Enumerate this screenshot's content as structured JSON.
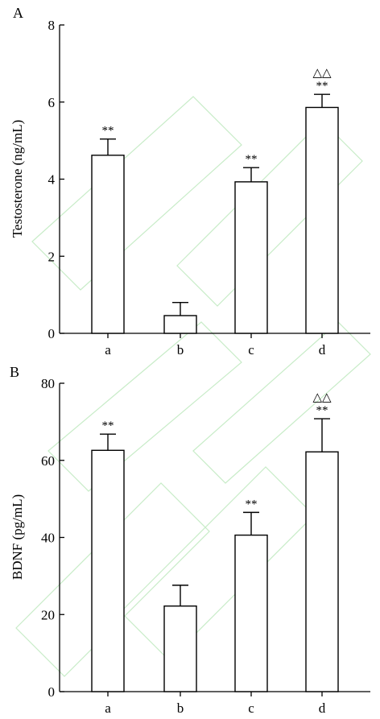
{
  "chart_data": [
    {
      "panel": "A",
      "type": "bar",
      "ylabel": "Testosterone (ng/mL)",
      "categories": [
        "a",
        "b",
        "c",
        "d"
      ],
      "values": [
        4.62,
        0.46,
        3.93,
        5.86
      ],
      "errors": [
        0.42,
        0.34,
        0.37,
        0.34
      ],
      "significance": [
        "**",
        "",
        "**",
        "**"
      ],
      "significance_extra": [
        "",
        "",
        "",
        "△△"
      ],
      "ylim": [
        0,
        8
      ],
      "yticks": [
        0,
        2,
        4,
        6,
        8
      ],
      "grid": false,
      "legend": "none"
    },
    {
      "panel": "B",
      "type": "bar",
      "ylabel": "BDNF (pg/mL)",
      "categories": [
        "a",
        "b",
        "c",
        "d"
      ],
      "values": [
        62.6,
        22.2,
        40.6,
        62.2
      ],
      "errors": [
        4.2,
        5.4,
        5.9,
        8.6
      ],
      "significance": [
        "**",
        "",
        "**",
        "**"
      ],
      "significance_extra": [
        "",
        "",
        "",
        "△△"
      ],
      "ylim": [
        0,
        80
      ],
      "yticks": [
        0,
        20,
        40,
        60,
        80
      ],
      "grid": false,
      "legend": "none"
    }
  ]
}
